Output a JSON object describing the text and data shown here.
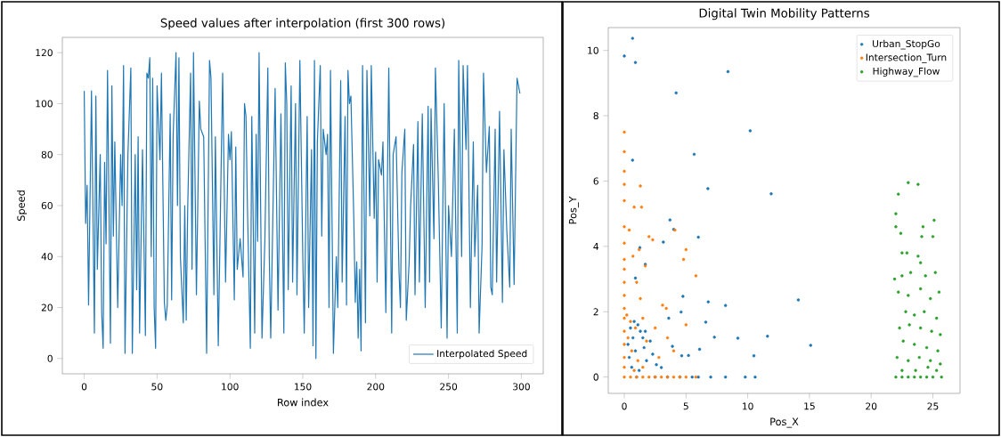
{
  "chart_data": [
    {
      "type": "line",
      "title": "Speed values after interpolation (first 300 rows)",
      "xlabel": "Row index",
      "ylabel": "Speed",
      "xlim": [
        -15,
        315
      ],
      "ylim": [
        -6,
        126
      ],
      "xticks": [
        0,
        50,
        100,
        150,
        200,
        250,
        300
      ],
      "yticks": [
        0,
        20,
        40,
        60,
        80,
        100,
        120
      ],
      "legend": "bottom right",
      "series": [
        {
          "name": "Interpolated Speed",
          "color": "#1f77b4",
          "x": [
            0,
            1,
            2,
            3,
            5,
            7,
            8,
            9,
            11,
            12,
            13,
            14,
            15,
            16,
            18,
            19,
            20,
            21,
            23,
            25,
            26,
            27,
            28,
            30,
            32,
            33,
            35,
            36,
            37,
            38,
            40,
            42,
            43,
            44,
            45,
            46,
            47,
            48,
            49,
            50,
            52,
            53,
            55,
            56,
            57,
            59,
            60,
            61,
            63,
            64,
            65,
            66,
            68,
            69,
            70,
            71,
            73,
            74,
            75,
            77,
            79,
            80,
            82,
            84,
            86,
            87,
            89,
            90,
            92,
            95,
            97,
            99,
            100,
            101,
            103,
            104,
            105,
            107,
            109,
            110,
            111,
            112,
            114,
            115,
            117,
            118,
            119,
            120,
            122,
            124,
            126,
            127,
            128,
            131,
            133,
            135,
            137,
            138,
            139,
            140,
            142,
            143,
            145,
            146,
            148,
            150,
            151,
            153,
            154,
            156,
            157,
            158,
            159,
            160,
            162,
            163,
            164,
            166,
            167,
            168,
            169,
            171,
            173,
            174,
            176,
            177,
            179,
            180,
            181,
            182,
            183,
            185,
            186,
            187,
            188,
            189,
            190,
            191,
            193,
            194,
            196,
            197,
            199,
            200,
            201,
            202,
            204,
            205,
            207,
            209,
            211,
            212,
            214,
            216,
            217,
            218,
            220,
            221,
            223,
            224,
            226,
            227,
            229,
            230,
            232,
            234,
            236,
            237,
            238,
            240,
            241,
            243,
            245,
            247,
            249,
            250,
            252,
            254,
            256,
            257,
            259,
            260,
            262,
            263,
            265,
            267,
            268,
            270,
            271,
            273,
            274,
            276,
            278,
            279,
            280,
            282,
            283,
            285,
            287,
            288,
            290,
            292,
            293,
            295,
            297,
            299
          ],
          "values": [
            105,
            53,
            68,
            21,
            105,
            10,
            103,
            35,
            80,
            18,
            4,
            77,
            45,
            113,
            6,
            107,
            48,
            85,
            20,
            80,
            60,
            115,
            2,
            80,
            114,
            2,
            80,
            27,
            87,
            10,
            82,
            9,
            112,
            110,
            118,
            40,
            110,
            20,
            4,
            107,
            78,
            112,
            22,
            15,
            21,
            96,
            23,
            87,
            120,
            60,
            118,
            40,
            14,
            60,
            15,
            58,
            112,
            35,
            120,
            25,
            101,
            90,
            87,
            2,
            117,
            110,
            25,
            87,
            5,
            112,
            30,
            88,
            78,
            89,
            23,
            83,
            35,
            47,
            32,
            100,
            95,
            60,
            4,
            95,
            10,
            88,
            46,
            120,
            8,
            47,
            114,
            40,
            8,
            106,
            19,
            96,
            10,
            116,
            100,
            27,
            107,
            30,
            100,
            25,
            117,
            40,
            10,
            95,
            20,
            82,
            5,
            117,
            0,
            85,
            115,
            48,
            90,
            80,
            88,
            20,
            113,
            2,
            40,
            20,
            109,
            30,
            95,
            21,
            113,
            100,
            103,
            55,
            22,
            38,
            8,
            35,
            3,
            115,
            14,
            113,
            56,
            115,
            55,
            81,
            30,
            78,
            72,
            85,
            18,
            114,
            10,
            80,
            87,
            34,
            20,
            73,
            90,
            15,
            38,
            60,
            84,
            25,
            93,
            30,
            96,
            20,
            99,
            30,
            98,
            47,
            114,
            70,
            12,
            100,
            8,
            60,
            40,
            90,
            10,
            117,
            40,
            115,
            82,
            115,
            20,
            85,
            40,
            68,
            10,
            44,
            112,
            73,
            91,
            28,
            25,
            90,
            30,
            97,
            22,
            82,
            50,
            28,
            90,
            29,
            110,
            104
          ]
        }
      ]
    },
    {
      "type": "scatter",
      "title": "Digital Twin Mobility Patterns",
      "xlabel": "Pos_X",
      "ylabel": "Pos_Y",
      "xlim": [
        -1.3,
        27.2
      ],
      "ylim": [
        -0.5,
        10.7
      ],
      "xticks": [
        0,
        5,
        10,
        15,
        20,
        25
      ],
      "yticks": [
        0,
        2,
        4,
        6,
        8,
        10
      ],
      "legend": "top right",
      "marker": "circle",
      "series": [
        {
          "name": "Urban_StopGo",
          "color": "#1f77b4",
          "x": [
            0.67,
            0,
            0.9,
            8.4,
            4.2,
            10.2,
            5.66,
            0.67,
            6.77,
            11.9,
            3.7,
            4.0,
            6.0,
            3.16,
            1.26,
            0.9,
            1.7,
            14.1,
            4.75,
            6.8,
            8.2,
            4.6,
            3.6,
            6.6,
            7.3,
            9.2,
            11.6,
            15.1,
            10.5,
            6.1,
            3.9,
            4.65,
            5.2,
            2.6,
            3.0,
            0.5,
            0.7,
            0.9,
            1.1,
            1.3,
            0.4,
            0.6,
            1.5,
            1.7,
            1.8,
            1.2,
            0.8,
            0.3,
            1.6,
            2.3,
            2.1,
            1.0,
            2.5,
            3.5,
            4.5,
            5.5,
            6.0,
            7.0,
            8.2,
            9.8,
            10.6
          ],
          "values": [
            10.37,
            9.83,
            9.63,
            9.35,
            8.7,
            7.54,
            6.82,
            6.64,
            5.77,
            5.61,
            4.81,
            4.52,
            4.28,
            4.13,
            3.96,
            3.03,
            3.45,
            2.36,
            2.47,
            2.3,
            2.19,
            1.99,
            1.8,
            1.68,
            1.22,
            1.19,
            1.25,
            0.97,
            0.65,
            0.85,
            0.94,
            0.65,
            0.66,
            0.38,
            0.29,
            1.5,
            1.2,
            0.8,
            1.6,
            1.4,
            0.6,
            0.3,
            1.2,
            1.4,
            0.5,
            0.2,
            1.7,
            1.0,
            0.9,
            0.7,
            1.1,
            0,
            0,
            0,
            0,
            0,
            0,
            0,
            0,
            0,
            0
          ]
        },
        {
          "name": "Intersection_Turn",
          "color": "#ff7f0e",
          "x": [
            0,
            0,
            0,
            0,
            0,
            0,
            0,
            0,
            0,
            0,
            0,
            0,
            0,
            0,
            0,
            0,
            0,
            0,
            1.3,
            0.8,
            1.4,
            0.4,
            0.7,
            1.2,
            2.0,
            2.3,
            4.1,
            4.8,
            5.0,
            5.8,
            3.1,
            3.4,
            1.0,
            1.3,
            1.7,
            0.2,
            0.5,
            0.9,
            1.5,
            1.8,
            0.3,
            0.6,
            1.1,
            1.5,
            0.8,
            2.5,
            3.5,
            4.0,
            2.8,
            5.0,
            0.5,
            1.0,
            1.5,
            2.0,
            2.5,
            3.0,
            3.5,
            4.0,
            4.5,
            5.0,
            5.8
          ],
          "values": [
            7.5,
            6.9,
            6.3,
            5.9,
            5.4,
            4.6,
            4.1,
            3.6,
            3.3,
            2.9,
            2.5,
            2.1,
            1.8,
            1.4,
            1.0,
            0.6,
            0.3,
            0,
            5.85,
            5.2,
            5.2,
            4.5,
            3.7,
            3.9,
            4.3,
            4.2,
            4.5,
            3.6,
            3.9,
            3.1,
            2.2,
            2.1,
            2.9,
            2.4,
            3.4,
            1.9,
            1.7,
            1.5,
            1.8,
            1.1,
            1.2,
            0.8,
            0.5,
            0.3,
            0.2,
            1.5,
            1.2,
            0.8,
            0.6,
            1.6,
            0,
            0,
            0,
            0,
            0,
            0,
            0,
            0,
            0,
            0,
            0
          ]
        },
        {
          "name": "Highway_Flow",
          "color": "#2ca02c",
          "x": [
            22.2,
            23.0,
            23.8,
            25.1,
            22.0,
            22.0,
            22.4,
            24.2,
            24.1,
            25.0,
            22.5,
            22.9,
            23.8,
            24.0,
            21.9,
            22.5,
            23.2,
            24.4,
            25.2,
            22.2,
            23.0,
            24.0,
            24.8,
            25.5,
            22.8,
            23.5,
            24.3,
            25.3,
            22.3,
            23.1,
            24.0,
            24.9,
            25.6,
            22.6,
            23.5,
            24.5,
            25.4,
            22.1,
            23.0,
            23.9,
            24.8,
            25.6,
            22.5,
            23.6,
            24.6,
            25.3,
            22.0,
            22.5,
            23.0,
            23.5,
            24.0,
            24.5,
            25.0,
            25.7
          ],
          "values": [
            5.6,
            5.95,
            5.9,
            4.8,
            5.0,
            4.6,
            4.4,
            4.6,
            4.3,
            4.3,
            3.8,
            3.8,
            3.7,
            3.5,
            3.0,
            3.1,
            3.2,
            3.1,
            3.2,
            2.6,
            2.5,
            2.7,
            2.4,
            2.6,
            2.0,
            1.9,
            2.0,
            1.8,
            1.5,
            1.6,
            1.5,
            1.4,
            1.3,
            1.1,
            1.0,
            0.9,
            0.8,
            0.6,
            0.5,
            0.6,
            0.5,
            0.4,
            0.2,
            0.2,
            0.3,
            0.2,
            0,
            0,
            0,
            0,
            0,
            0,
            0,
            0
          ]
        }
      ]
    }
  ]
}
